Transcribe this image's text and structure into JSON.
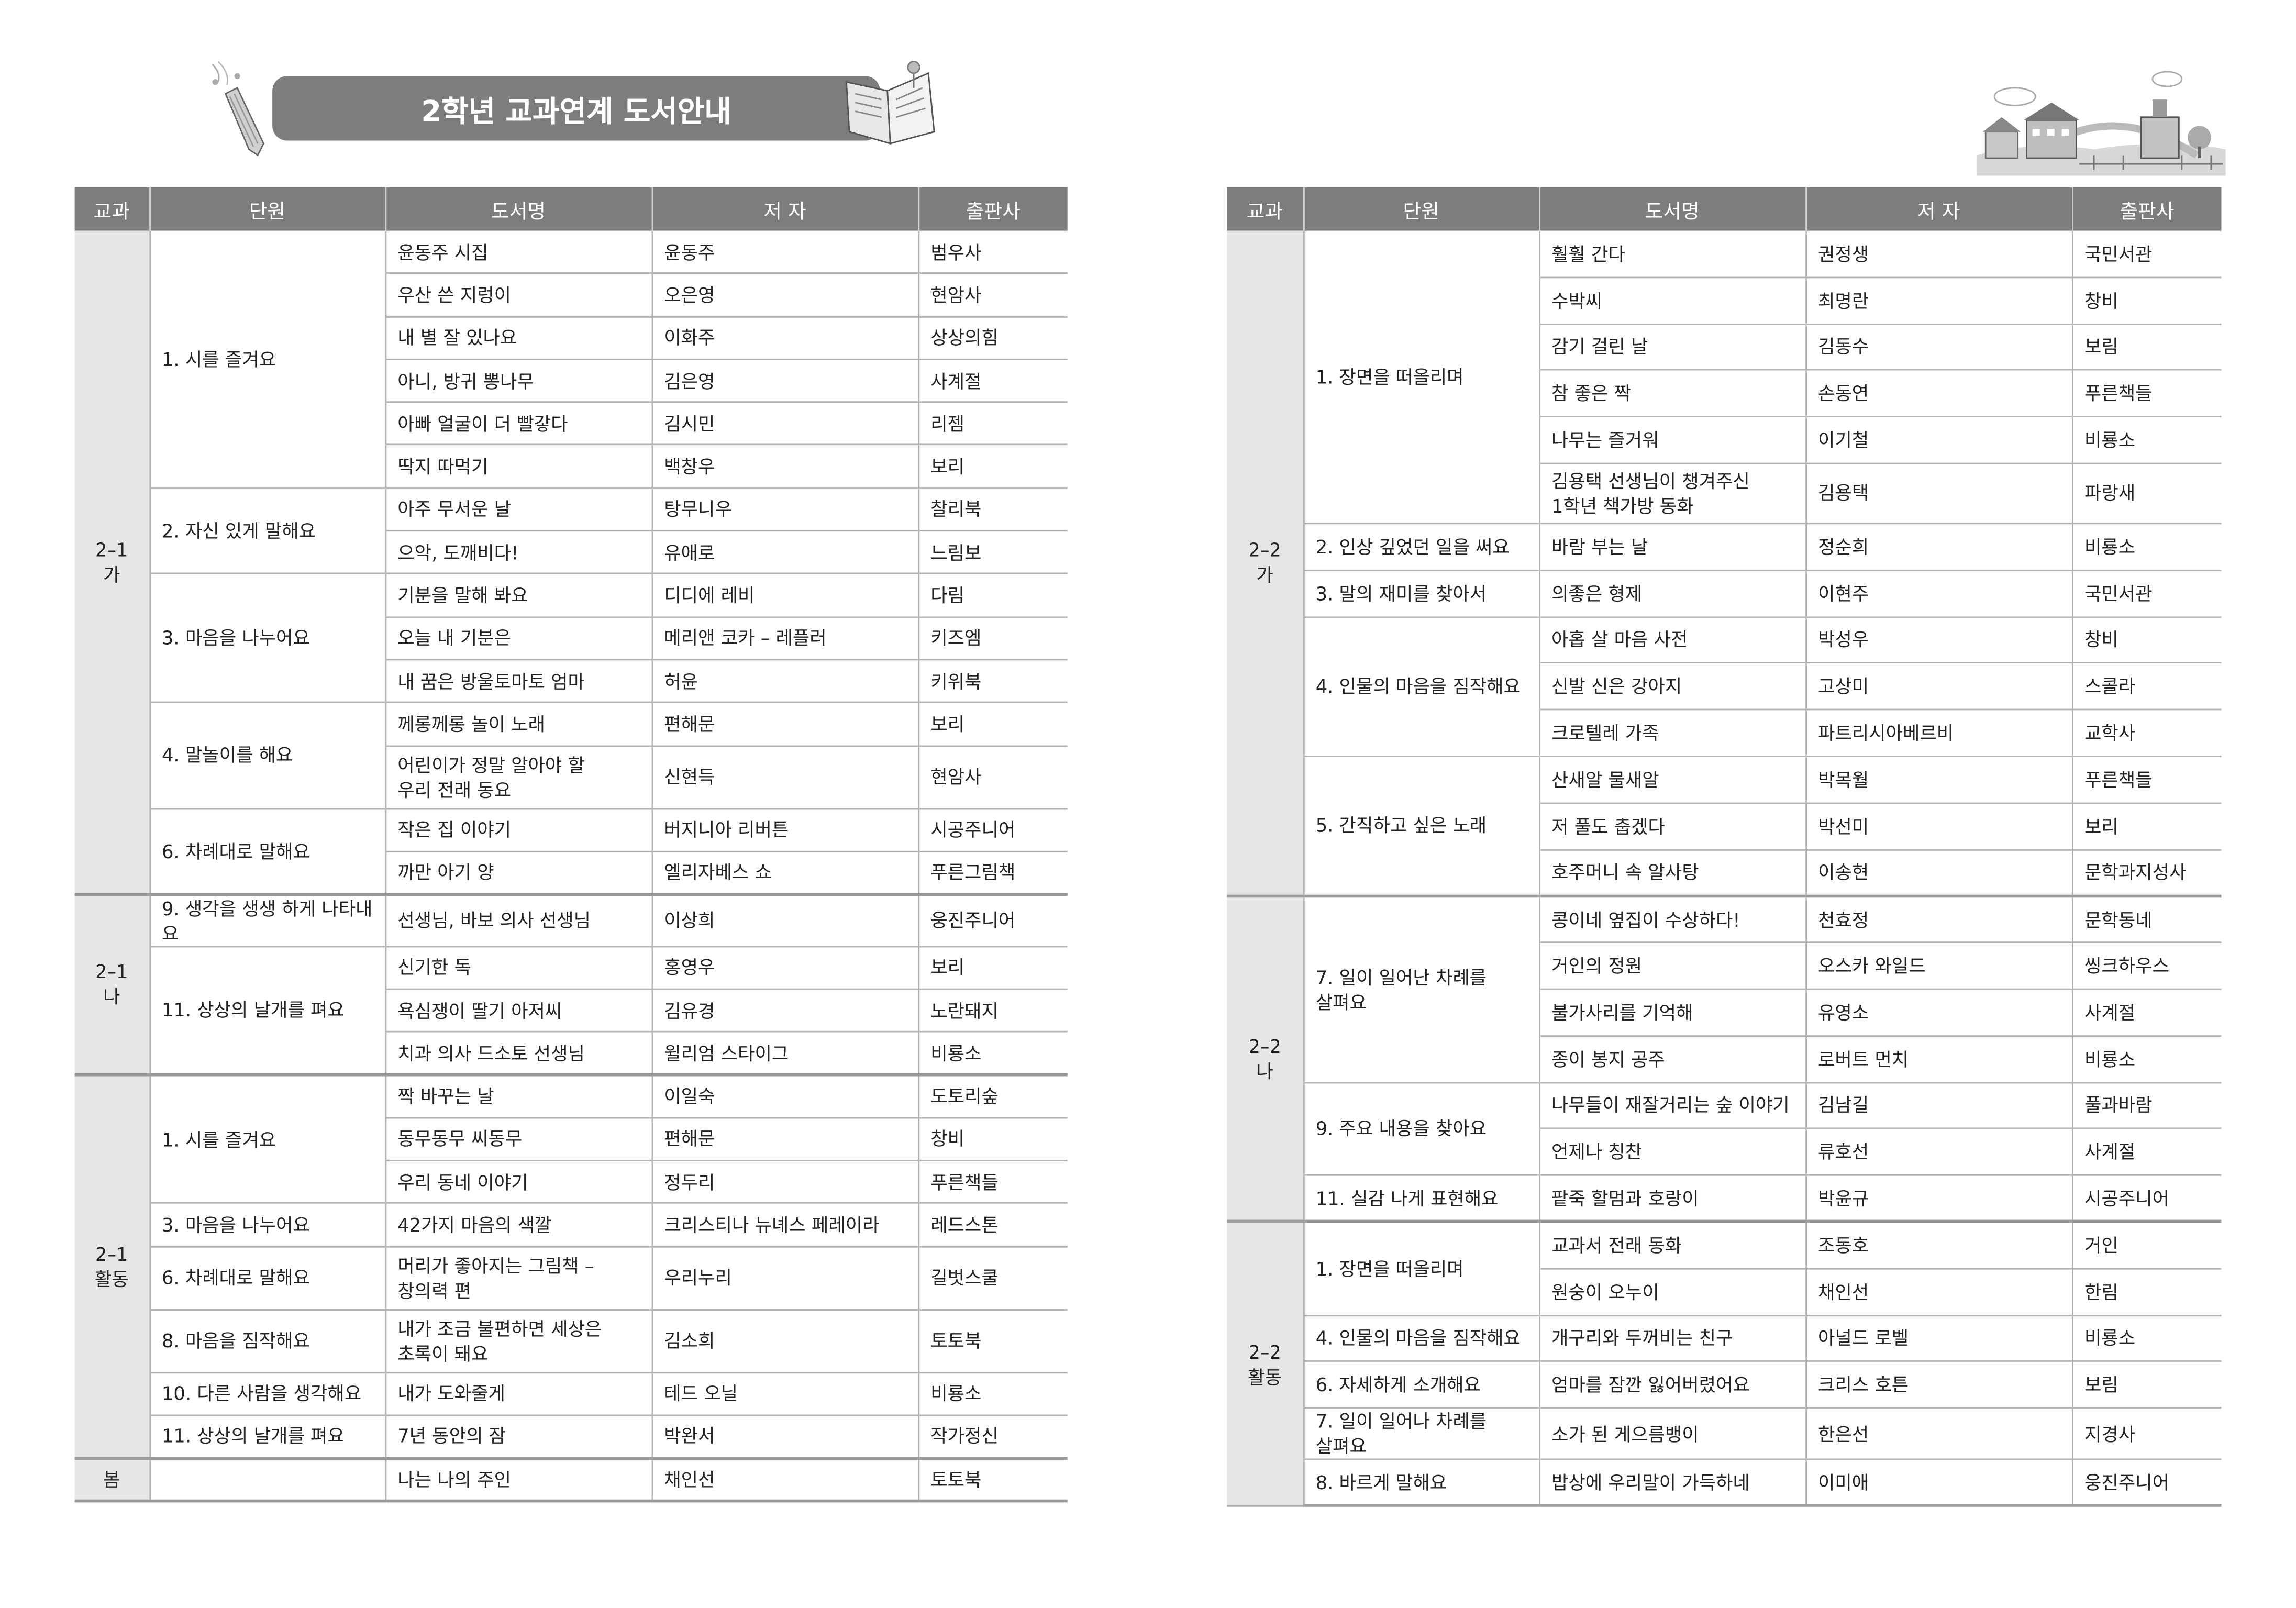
{
  "title": "2학년 교과연계 도서안내",
  "headers": [
    "교과",
    "단원",
    "도서명",
    "저 자",
    "출판사"
  ],
  "left_table": [
    {
      "subject": "2–1\n가",
      "units": [
        {
          "unit": "1. 시를 즐겨요",
          "books": [
            {
              "title": "윤동주 시집",
              "author": "윤동주",
              "publisher": "범우사"
            },
            {
              "title": "우산 쓴 지렁이",
              "author": "오은영",
              "publisher": "현암사"
            },
            {
              "title": "내 별 잘 있나요",
              "author": "이화주",
              "publisher": "상상의힘"
            },
            {
              "title": "아니, 방귀 뽕나무",
              "author": "김은영",
              "publisher": "사계절"
            },
            {
              "title": "아빠 얼굴이 더 빨갛다",
              "author": "김시민",
              "publisher": "리젬"
            },
            {
              "title": "딱지 따먹기",
              "author": "백창우",
              "publisher": "보리"
            }
          ]
        },
        {
          "unit": "2. 자신 있게 말해요",
          "books": [
            {
              "title": "아주 무서운 날",
              "author": "탕무니우",
              "publisher": "찰리북"
            },
            {
              "title": "으악, 도깨비다!",
              "author": "유애로",
              "publisher": "느림보"
            }
          ]
        },
        {
          "unit": "3. 마음을 나누어요",
          "books": [
            {
              "title": "기분을 말해 봐요",
              "author": "디디에 레비",
              "publisher": "다림"
            },
            {
              "title": "오늘 내 기분은",
              "author": "메리앤 코카 – 레플러",
              "publisher": "키즈엠"
            },
            {
              "title": "내 꿈은 방울토마토 엄마",
              "author": "허윤",
              "publisher": "키위북"
            }
          ]
        },
        {
          "unit": "4. 말놀이를 해요",
          "books": [
            {
              "title": "께롱께롱 놀이 노래",
              "author": "편해문",
              "publisher": "보리"
            },
            {
              "title": "어린이가 정말 알아야 할\n우리 전래 동요",
              "author": "신현득",
              "publisher": "현암사"
            }
          ]
        },
        {
          "unit": "6. 차례대로 말해요",
          "books": [
            {
              "title": "작은 집 이야기",
              "author": "버지니아 리버튼",
              "publisher": "시공주니어"
            },
            {
              "title": "까만 아기 양",
              "author": "엘리자베스 쇼",
              "publisher": "푸른그림책"
            }
          ]
        }
      ]
    },
    {
      "subject": "2–1\n나",
      "units": [
        {
          "unit": "9. 생각을 생생 하게 나타내요",
          "books": [
            {
              "title": "선생님, 바보 의사 선생님",
              "author": "이상희",
              "publisher": "웅진주니어"
            }
          ]
        },
        {
          "unit": "11. 상상의 날개를 펴요",
          "books": [
            {
              "title": "신기한 독",
              "author": "홍영우",
              "publisher": "보리"
            },
            {
              "title": "욕심쟁이 딸기 아저씨",
              "author": "김유경",
              "publisher": "노란돼지"
            },
            {
              "title": "치과 의사 드소토 선생님",
              "author": "윌리엄 스타이그",
              "publisher": "비룡소"
            }
          ]
        }
      ]
    },
    {
      "subject": "2–1\n활동",
      "units": [
        {
          "unit": "1. 시를 즐겨요",
          "books": [
            {
              "title": "짝 바꾸는 날",
              "author": "이일숙",
              "publisher": "도토리숲"
            },
            {
              "title": "동무동무 씨동무",
              "author": "편해문",
              "publisher": "창비"
            },
            {
              "title": "우리 동네 이야기",
              "author": "정두리",
              "publisher": "푸른책들"
            }
          ]
        },
        {
          "unit": "3. 마음을 나누어요",
          "books": [
            {
              "title": "42가지 마음의 색깔",
              "author": "크리스티나 뉴녜스 페레이라",
              "publisher": "레드스톤"
            }
          ]
        },
        {
          "unit": "6. 차례대로 말해요",
          "books": [
            {
              "title": "머리가 좋아지는 그림책 –\n창의력 편",
              "author": "우리누리",
              "publisher": "길벗스쿨"
            }
          ]
        },
        {
          "unit": "8. 마음을 짐작해요",
          "books": [
            {
              "title": "내가 조금 불편하면 세상은\n초록이 돼요",
              "author": "김소희",
              "publisher": "토토북"
            }
          ]
        },
        {
          "unit": "10. 다른 사람을 생각해요",
          "books": [
            {
              "title": "내가 도와줄게",
              "author": "테드 오닐",
              "publisher": "비룡소"
            }
          ]
        },
        {
          "unit": "11. 상상의 날개를 펴요",
          "books": [
            {
              "title": "7년 동안의 잠",
              "author": "박완서",
              "publisher": "작가정신"
            }
          ]
        }
      ]
    },
    {
      "subject": "봄",
      "units": [
        {
          "unit": "",
          "books": [
            {
              "title": "나는 나의 주인",
              "author": "채인선",
              "publisher": "토토북"
            }
          ]
        }
      ]
    }
  ],
  "right_table": [
    {
      "subject": "2–2\n가",
      "units": [
        {
          "unit": "1. 장면을 떠올리며",
          "books": [
            {
              "title": "훨훨 간다",
              "author": "권정생",
              "publisher": "국민서관"
            },
            {
              "title": "수박씨",
              "author": "최명란",
              "publisher": "창비"
            },
            {
              "title": "감기 걸린 날",
              "author": "김동수",
              "publisher": "보림"
            },
            {
              "title": "참 좋은 짝",
              "author": "손동연",
              "publisher": "푸른책들"
            },
            {
              "title": "나무는 즐거워",
              "author": "이기철",
              "publisher": "비룡소"
            },
            {
              "title": "김용택 선생님이 챙겨주신\n1학년 책가방 동화",
              "author": "김용택",
              "publisher": "파랑새"
            }
          ]
        },
        {
          "unit": "2. 인상 깊었던 일을 써요",
          "books": [
            {
              "title": "바람 부는 날",
              "author": "정순희",
              "publisher": "비룡소"
            }
          ]
        },
        {
          "unit": "3. 말의 재미를 찾아서",
          "books": [
            {
              "title": "의좋은 형제",
              "author": "이현주",
              "publisher": "국민서관"
            }
          ]
        },
        {
          "unit": "4. 인물의 마음을 짐작해요",
          "books": [
            {
              "title": "아홉 살 마음 사전",
              "author": "박성우",
              "publisher": "창비"
            },
            {
              "title": "신발 신은 강아지",
              "author": "고상미",
              "publisher": "스콜라"
            },
            {
              "title": "크로텔레 가족",
              "author": "파트리시아베르비",
              "publisher": "교학사"
            }
          ]
        },
        {
          "unit": "5. 간직하고 싶은 노래",
          "books": [
            {
              "title": "산새알 물새알",
              "author": "박목월",
              "publisher": "푸른책들"
            },
            {
              "title": "저 풀도 춥겠다",
              "author": "박선미",
              "publisher": "보리"
            },
            {
              "title": "호주머니 속 알사탕",
              "author": "이송현",
              "publisher": "문학과지성사"
            }
          ]
        }
      ]
    },
    {
      "subject": "2–2\n나",
      "units": [
        {
          "unit": "7. 일이 일어난 차례를\n살펴요",
          "books": [
            {
              "title": "콩이네 옆집이 수상하다!",
              "author": "천효정",
              "publisher": "문학동네"
            },
            {
              "title": "거인의 정원",
              "author": "오스카 와일드",
              "publisher": "씽크하우스"
            },
            {
              "title": "불가사리를 기억해",
              "author": "유영소",
              "publisher": "사계절"
            },
            {
              "title": "종이 봉지 공주",
              "author": "로버트 먼치",
              "publisher": "비룡소"
            }
          ]
        },
        {
          "unit": "9. 주요 내용을 찾아요",
          "books": [
            {
              "title": "나무들이 재잘거리는 숲 이야기",
              "author": "김남길",
              "publisher": "풀과바람"
            },
            {
              "title": "언제나 칭찬",
              "author": "류호선",
              "publisher": "사계절"
            }
          ]
        },
        {
          "unit": "11. 실감 나게 표현해요",
          "books": [
            {
              "title": "팥죽 할멈과 호랑이",
              "author": "박윤규",
              "publisher": "시공주니어"
            }
          ]
        }
      ]
    },
    {
      "subject": "2–2\n활동",
      "units": [
        {
          "unit": "1. 장면을 떠올리며",
          "books": [
            {
              "title": "교과서 전래 동화",
              "author": "조동호",
              "publisher": "거인"
            },
            {
              "title": "원숭이 오누이",
              "author": "채인선",
              "publisher": "한림"
            }
          ]
        },
        {
          "unit": "4. 인물의 마음을 짐작해요",
          "books": [
            {
              "title": "개구리와 두꺼비는 친구",
              "author": "아널드 로벨",
              "publisher": "비룡소"
            }
          ]
        },
        {
          "unit": "6. 자세하게 소개해요",
          "books": [
            {
              "title": "엄마를 잠깐 잃어버렸어요",
              "author": "크리스 호튼",
              "publisher": "보림"
            }
          ]
        },
        {
          "unit": "7. 일이 일어나 차례를\n살펴요",
          "books": [
            {
              "title": "소가 된 게으름뱅이",
              "author": "한은선",
              "publisher": "지경사"
            }
          ]
        },
        {
          "unit": "8. 바르게 말해요",
          "books": [
            {
              "title": "밥상에 우리말이 가득하네",
              "author": "이미애",
              "publisher": "웅진주니어"
            }
          ]
        }
      ]
    }
  ]
}
